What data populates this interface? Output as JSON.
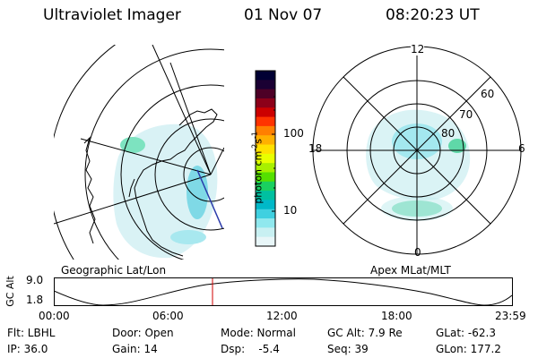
{
  "header": {
    "title": "Ultraviolet Imager",
    "date": "01 Nov 07",
    "time": "08:20:23 UT"
  },
  "geo_panel": {
    "caption": "Geographic Lat/Lon"
  },
  "apex_panel": {
    "caption": "Apex MLat/MLT",
    "mlt_labels": {
      "top": "12",
      "right": "6",
      "bottom": "0",
      "left": "18"
    },
    "lat_labels": [
      "60",
      "70",
      "80"
    ]
  },
  "colorbar": {
    "unit_label": "photon cm",
    "unit_sup1": "-2",
    "unit_s": "s",
    "unit_sup2": "-1",
    "ticks": [
      "100",
      "10"
    ],
    "colors": [
      "#000033",
      "#1a0033",
      "#4d0026",
      "#8c0019",
      "#cc0000",
      "#ff3300",
      "#ff7f00",
      "#ffb000",
      "#ffe000",
      "#e8ff00",
      "#a8f000",
      "#55e000",
      "#1ad060",
      "#00c0a0",
      "#00b8c8",
      "#40d0e0",
      "#90e8ee",
      "#c8f0f2",
      "#e8f6f8"
    ]
  },
  "altitude_panel": {
    "axis_title": "GC Alt",
    "y_ticks": [
      "9.0",
      "1.8"
    ],
    "x_ticks": [
      "00:00",
      "06:00",
      "12:00",
      "18:00",
      "23:59"
    ],
    "marker_color": "#d00000"
  },
  "status": {
    "flt": "Flt: LBHL",
    "ip": "IP: 36.0",
    "door": "Door: Open",
    "gain": "Gain: 14",
    "mode": "Mode: Normal",
    "dsp": "Dsp:    -5.4",
    "gc_alt": "GC Alt: 7.9 Re",
    "seq": "Seq: 39",
    "glat": "GLat: -62.3",
    "glon": "GLon: 177.2"
  }
}
